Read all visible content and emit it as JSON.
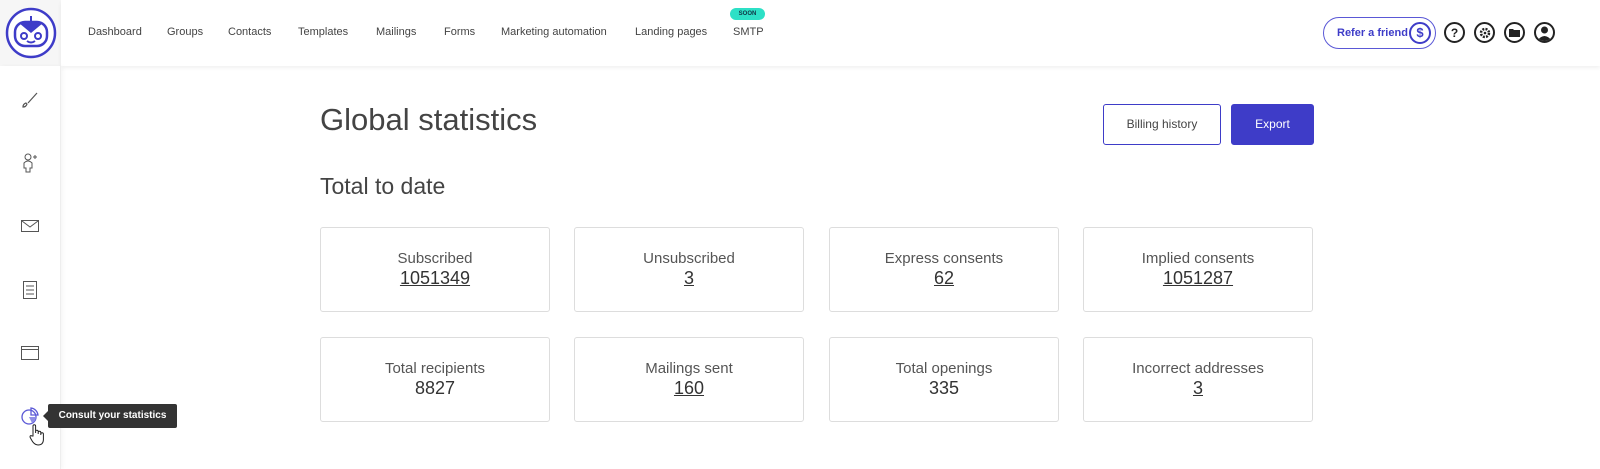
{
  "header": {
    "nav": [
      "Dashboard",
      "Groups",
      "Contacts",
      "Templates",
      "Mailings",
      "Forms",
      "Marketing automation",
      "Landing pages",
      "SMTP"
    ],
    "soon_badge": "SOON",
    "refer_label": "Refer a friend",
    "refer_icon": "$",
    "help_icon": "?"
  },
  "sidebar": {
    "icons": [
      "brush-icon",
      "add-contact-icon",
      "mail-icon",
      "form-icon",
      "landing-page-icon",
      "statistics-icon"
    ],
    "tooltip": "Consult your statistics"
  },
  "main": {
    "title": "Global statistics",
    "billing_label": "Billing history",
    "export_label": "Export",
    "section": "Total to date",
    "cards": [
      {
        "label": "Subscribed",
        "value": "1051349",
        "link": true
      },
      {
        "label": "Unsubscribed",
        "value": "3",
        "link": true
      },
      {
        "label": "Express consents",
        "value": "62",
        "link": true
      },
      {
        "label": "Implied consents",
        "value": "1051287",
        "link": true
      },
      {
        "label": "Total recipients",
        "value": "8827",
        "link": false
      },
      {
        "label": "Mailings sent",
        "value": "160",
        "link": true
      },
      {
        "label": "Total openings",
        "value": "335",
        "link": false
      },
      {
        "label": "Incorrect addresses",
        "value": "3",
        "link": true
      }
    ]
  },
  "colors": {
    "accent": "#3e3cc8",
    "soon": "#2de0c6"
  }
}
